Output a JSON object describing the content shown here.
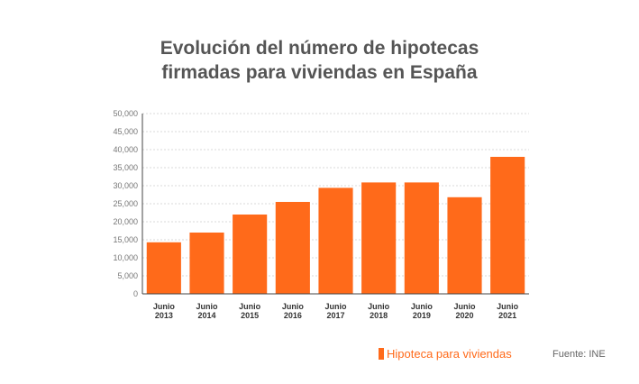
{
  "chart_data": {
    "type": "bar",
    "title_line1": "Evolución del número de hipotecas",
    "title_line2": "firmadas para viviendas en España",
    "categories": [
      [
        "Junio",
        "2013"
      ],
      [
        "Junio",
        "2014"
      ],
      [
        "Junio",
        "2015"
      ],
      [
        "Junio",
        "2016"
      ],
      [
        "Junio",
        "2017"
      ],
      [
        "Junio",
        "2018"
      ],
      [
        "Junio",
        "2019"
      ],
      [
        "Junio",
        "2020"
      ],
      [
        "Junio",
        "2021"
      ]
    ],
    "series": [
      {
        "name": "Hipoteca para viviendas",
        "values": [
          14300,
          17000,
          22000,
          25500,
          29400,
          30900,
          30900,
          26800,
          38000
        ]
      }
    ],
    "yticks": [
      "0",
      "5,000",
      "10,000",
      "15,000",
      "20,000",
      "25,000",
      "30,000",
      "35,000",
      "40,000",
      "45,000",
      "50,000"
    ],
    "ylim": [
      0,
      50000
    ],
    "grid": true,
    "legend_position": "bottom-right",
    "bar_color": "#ff6a1a",
    "source": "Fuente: INE"
  }
}
